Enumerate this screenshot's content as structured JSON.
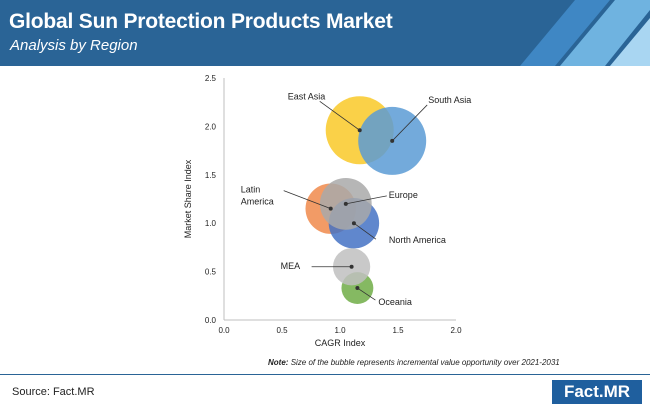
{
  "header": {
    "title": "Global Sun Protection Products Market",
    "subtitle": "Analysis by Region"
  },
  "note": {
    "label": "Note:",
    "text": "Size of the bubble represents incremental value opportunity over 2021-2031"
  },
  "footer": {
    "source": "Source: Fact.MR",
    "logo": "Fact.MR"
  },
  "colors": {
    "banner": "#2a6496",
    "banner_stripes": [
      "#3f87c4",
      "#6fb3e0",
      "#a9d6f2"
    ]
  },
  "chart_data": {
    "type": "scatter",
    "xlabel": "CAGR Index",
    "ylabel": "Market Share Index",
    "xlim": [
      0,
      2.0
    ],
    "ylim": [
      0,
      2.5
    ],
    "xticks": [
      "0.0",
      "0.5",
      "1.0",
      "1.5",
      "2.0"
    ],
    "yticks": [
      "0.0",
      "0.5",
      "1.0",
      "1.5",
      "2.0",
      "2.5"
    ],
    "grid": false,
    "legend": "none",
    "points": [
      {
        "name": "East Asia",
        "x": 1.17,
        "y": 1.96,
        "size": 1.0,
        "color": "#f9c928",
        "label": [
          "East Asia"
        ]
      },
      {
        "name": "South Asia",
        "x": 1.45,
        "y": 1.85,
        "size": 1.0,
        "color": "#5b9bd5",
        "label": [
          "South Asia"
        ]
      },
      {
        "name": "Latin America",
        "x": 0.92,
        "y": 1.15,
        "size": 0.55,
        "color": "#f08a4b",
        "label": [
          "Latin",
          "America"
        ]
      },
      {
        "name": "Europe",
        "x": 1.05,
        "y": 1.2,
        "size": 0.58,
        "color": "#a9a9a9",
        "label": [
          "Europe"
        ]
      },
      {
        "name": "North America",
        "x": 1.12,
        "y": 1.0,
        "size": 0.55,
        "color": "#4472c4",
        "label": [
          "North America"
        ]
      },
      {
        "name": "MEA",
        "x": 1.1,
        "y": 0.55,
        "size": 0.3,
        "color": "#bfbfbf",
        "label": [
          "MEA"
        ]
      },
      {
        "name": "Oceania",
        "x": 1.15,
        "y": 0.33,
        "size": 0.22,
        "color": "#70ad47",
        "label": [
          "Oceania"
        ]
      }
    ]
  }
}
